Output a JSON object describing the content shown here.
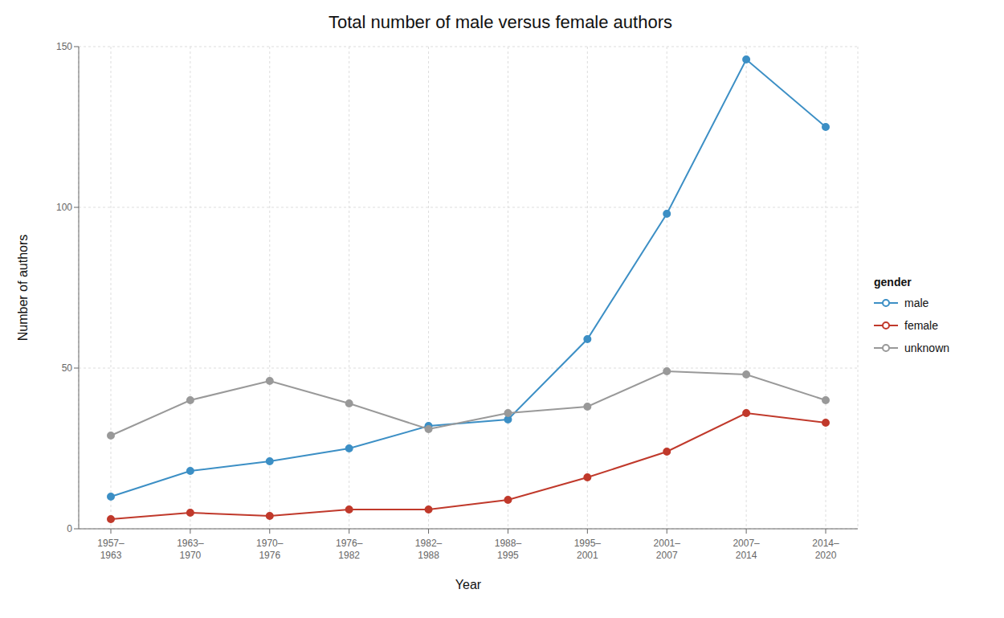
{
  "chart_data": {
    "type": "line",
    "title": "Total number of male versus female authors",
    "x_label": "Year",
    "y_label": "Number of authors",
    "categories": [
      "1957–\n1963",
      "1963–\n1970",
      "1970–\n1976",
      "1976–\n1982",
      "1982–\n1988",
      "1988–\n1995",
      "1995–\n2001",
      "2001–\n2007",
      "2007–\n2014",
      "2014–\n2020"
    ],
    "series": [
      {
        "name": "male",
        "color": "#3c8fc5",
        "values": [
          10,
          18,
          21,
          25,
          32,
          34,
          59,
          98,
          146,
          125
        ]
      },
      {
        "name": "female",
        "color": "#c0392b",
        "values": [
          3,
          5,
          4,
          6,
          6,
          9,
          16,
          24,
          36,
          33
        ]
      },
      {
        "name": "unknown",
        "color": "#999999",
        "values": [
          29,
          40,
          46,
          39,
          31,
          36,
          38,
          49,
          48,
          40
        ]
      }
    ],
    "legend_title": "gender",
    "legend": "right",
    "marker": "circle",
    "ylim": [
      0,
      150
    ],
    "yticks": [
      0,
      50,
      100,
      150
    ],
    "grid": true
  }
}
